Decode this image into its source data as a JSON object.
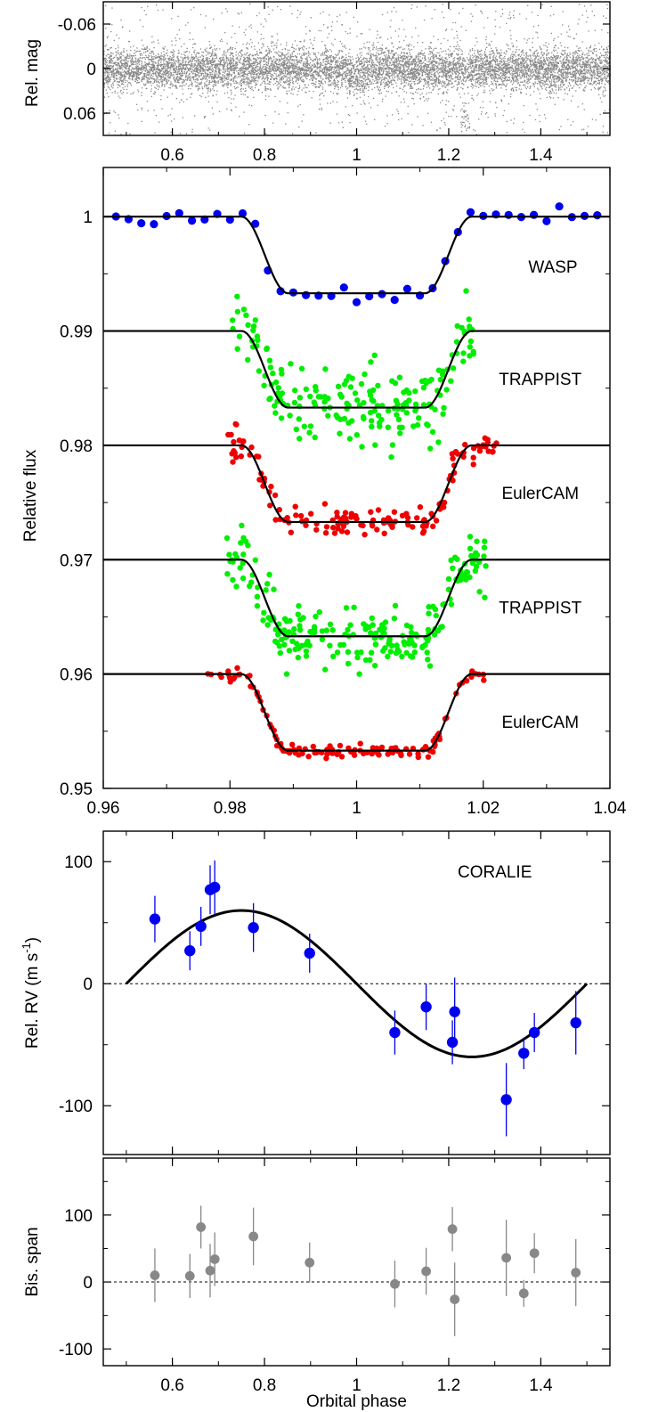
{
  "chart_data": [
    {
      "id": "phot",
      "type": "scatter",
      "ylabel": "Rel. mag",
      "xlim": [
        0.45,
        1.55
      ],
      "ylim": [
        -0.09,
        0.09
      ],
      "y_inverted": true,
      "xticks": [
        0.6,
        0.8,
        1.0,
        1.2,
        1.4
      ],
      "xtick_labels": [
        "0.6",
        "0.8",
        "1",
        "1.2",
        "1.4"
      ],
      "yticks": [
        -0.06,
        0,
        0.06
      ],
      "ytick_labels": [
        "-0.06",
        "0",
        "0.06"
      ],
      "series": [
        {
          "point_color": "#888888",
          "n_points": 9000,
          "core_scatter": 0.014,
          "transit_depth": 0.007,
          "transit_window": [
            0.982,
            1.018
          ],
          "outlier_band": [
            1.225,
            1.245
          ]
        }
      ]
    },
    {
      "id": "transits",
      "type": "scatter",
      "ylabel": "Relative flux",
      "xlim": [
        0.96,
        1.04
      ],
      "ylim": [
        0.95,
        1.0043
      ],
      "xticks": [
        0.96,
        0.98,
        1.0,
        1.02,
        1.04
      ],
      "xtick_labels": [
        "0.96",
        "0.98",
        "1",
        "1.02",
        "1.04"
      ],
      "yticks": [
        0.95,
        0.96,
        0.97,
        0.98,
        0.99,
        1.0
      ],
      "ytick_labels": [
        "0.95",
        "0.96",
        "0.97",
        "0.98",
        "0.99",
        "1"
      ],
      "model": {
        "depth": 0.0067,
        "t1": 0.0182,
        "t2": 0.0108
      },
      "series": [
        {
          "name": "WASP",
          "offset": 1.0,
          "color": "#0000ee",
          "x_range": [
            0.962,
            1.038
          ],
          "binned": true,
          "step": 0.002,
          "scatter": 0.0004,
          "label_x": 1.031,
          "label_y": 0.9951
        },
        {
          "name": "TRAPPIST",
          "offset": 0.99,
          "color": "#00ee00",
          "x_range": [
            0.9803,
            1.0187
          ],
          "n_points": 200,
          "scatter": 0.0016,
          "label_x": 1.029,
          "label_y": 0.9853
        },
        {
          "name": "EulerCAM",
          "offset": 0.98,
          "color": "#ee0000",
          "x_range": [
            0.9795,
            1.0225
          ],
          "n_points": 150,
          "scatter": 0.00065,
          "label_x": 1.029,
          "label_y": 0.9753
        },
        {
          "name": "TRAPPIST",
          "offset": 0.97,
          "color": "#00ee00",
          "x_range": [
            0.9795,
            1.0205
          ],
          "n_points": 230,
          "scatter": 0.0014,
          "label_x": 1.029,
          "label_y": 0.9653
        },
        {
          "name": "EulerCAM",
          "offset": 0.96,
          "color": "#ee0000",
          "x_range": [
            0.9765,
            1.0205
          ],
          "n_points": 130,
          "scatter": 0.00032,
          "label_x": 1.029,
          "label_y": 0.9553
        }
      ]
    },
    {
      "id": "rv",
      "type": "scatter",
      "ylabel": "Rel. RV (m s",
      "ylabel_sup": "-1",
      "ylabel_end": ")",
      "xlim": [
        0.45,
        1.55
      ],
      "ylim": [
        -140,
        125
      ],
      "yticks": [
        -100,
        0,
        100
      ],
      "ytick_labels": [
        "-100",
        "0",
        "100"
      ],
      "label": "CORALIE",
      "label_x": 1.3,
      "label_y": 87,
      "point_color": "#0000ee",
      "model": {
        "amplitude": 60,
        "x_range": [
          0.5,
          1.5
        ]
      },
      "points": [
        {
          "x": 0.562,
          "y": 53,
          "err": 19
        },
        {
          "x": 0.638,
          "y": 27,
          "err": 16
        },
        {
          "x": 0.662,
          "y": 47,
          "err": 16
        },
        {
          "x": 0.682,
          "y": 77,
          "err": 20
        },
        {
          "x": 0.692,
          "y": 79,
          "err": 22
        },
        {
          "x": 0.776,
          "y": 46,
          "err": 20
        },
        {
          "x": 0.898,
          "y": 25,
          "err": 16
        },
        {
          "x": 1.083,
          "y": -40,
          "err": 18
        },
        {
          "x": 1.151,
          "y": -19,
          "err": 19
        },
        {
          "x": 1.208,
          "y": -48,
          "err": 18
        },
        {
          "x": 1.213,
          "y": -23,
          "err": 28
        },
        {
          "x": 1.325,
          "y": -95,
          "err": 30
        },
        {
          "x": 1.363,
          "y": -57,
          "err": 13
        },
        {
          "x": 1.386,
          "y": -40,
          "err": 16
        },
        {
          "x": 1.476,
          "y": -32,
          "err": 26
        }
      ]
    },
    {
      "id": "bis",
      "type": "scatter",
      "ylabel": "Bis. span",
      "xlabel": "Orbital phase",
      "xlim": [
        0.45,
        1.55
      ],
      "ylim": [
        -125,
        185
      ],
      "xticks": [
        0.6,
        0.8,
        1.0,
        1.2,
        1.4
      ],
      "xtick_labels": [
        "0.6",
        "0.8",
        "1",
        "1.2",
        "1.4"
      ],
      "yticks": [
        -100,
        0,
        100
      ],
      "ytick_labels": [
        "-100",
        "0",
        "100"
      ],
      "point_color": "#888888",
      "points": [
        {
          "x": 0.562,
          "y": 10,
          "err": 40
        },
        {
          "x": 0.638,
          "y": 9,
          "err": 33
        },
        {
          "x": 0.662,
          "y": 82,
          "err": 32
        },
        {
          "x": 0.682,
          "y": 17,
          "err": 40
        },
        {
          "x": 0.692,
          "y": 34,
          "err": 40
        },
        {
          "x": 0.776,
          "y": 68,
          "err": 43
        },
        {
          "x": 0.898,
          "y": 29,
          "err": 30
        },
        {
          "x": 1.083,
          "y": -3,
          "err": 35
        },
        {
          "x": 1.151,
          "y": 16,
          "err": 35
        },
        {
          "x": 1.208,
          "y": 79,
          "err": 33
        },
        {
          "x": 1.213,
          "y": -26,
          "err": 55
        },
        {
          "x": 1.325,
          "y": 36,
          "err": 57
        },
        {
          "x": 1.363,
          "y": -17,
          "err": 20
        },
        {
          "x": 1.386,
          "y": 43,
          "err": 30
        },
        {
          "x": 1.476,
          "y": 14,
          "err": 50
        }
      ]
    }
  ]
}
